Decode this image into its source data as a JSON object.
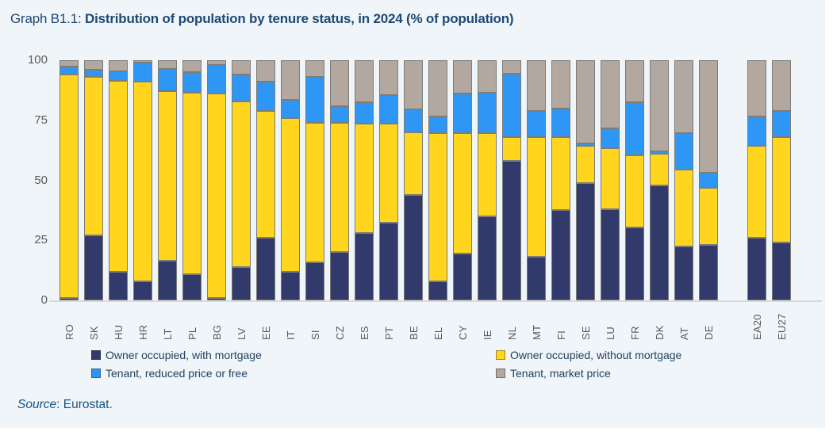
{
  "title": {
    "prefix": "Graph B1.1: ",
    "main": "Distribution of population by tenure status, in 2024 (% of population)"
  },
  "source": {
    "label": "Source",
    "rest": ": Eurostat."
  },
  "colors": {
    "panel_background": "#f0f5fa",
    "title_text": "#1d4a73",
    "axis_text": "#595959",
    "baseline": "#d9d9d9",
    "owner_with_mortgage": "#32396b",
    "owner_without_mortgage": "#ffd51d",
    "tenant_reduced": "#2e97f5",
    "tenant_market": "#b3a8a0"
  },
  "legend": {
    "items": [
      {
        "label": "Owner occupied, with mortgage",
        "color": "#32396b"
      },
      {
        "label": "Owner occupied, without mortgage",
        "color": "#ffd51d"
      },
      {
        "label": "Tenant, reduced price or free",
        "color": "#2e97f5"
      },
      {
        "label": "Tenant, market price",
        "color": "#b3a8a0"
      }
    ]
  },
  "chart_data": {
    "type": "bar",
    "stacked": true,
    "title": "Distribution of population by tenure status, in 2024 (% of population)",
    "xlabel": "",
    "ylabel": "",
    "ylim": [
      0,
      100
    ],
    "yticks": [
      0,
      25,
      50,
      75,
      100
    ],
    "grid": false,
    "legend_position": "bottom",
    "gap_before": "EA20",
    "categories": [
      "RO",
      "SK",
      "HU",
      "HR",
      "LT",
      "PL",
      "BG",
      "LV",
      "EE",
      "IT",
      "SI",
      "CZ",
      "ES",
      "PT",
      "BE",
      "EL",
      "CY",
      "IE",
      "NL",
      "MT",
      "FI",
      "SE",
      "LU",
      "FR",
      "DK",
      "AT",
      "DE",
      "EA20",
      "EU27"
    ],
    "series": [
      {
        "name": "Owner occupied, with mortgage",
        "color": "#32396b",
        "values": [
          1,
          27,
          12,
          8,
          16.5,
          11,
          1,
          14,
          26,
          12,
          16,
          20,
          28,
          32.5,
          44,
          8,
          19.5,
          35,
          58,
          18,
          37.5,
          49,
          38,
          30.5,
          48,
          22.5,
          23,
          26,
          24
        ]
      },
      {
        "name": "Owner occupied, without mortgage",
        "color": "#ffd51d",
        "values": [
          93,
          66,
          79.5,
          83,
          70.5,
          75.5,
          85,
          69,
          53,
          64,
          58,
          54,
          45.5,
          41,
          26,
          61.5,
          50,
          34.5,
          10,
          50,
          30.5,
          15.5,
          25.5,
          30,
          13,
          32,
          24,
          38.5,
          44
        ]
      },
      {
        "name": "Tenant, reduced price or free",
        "color": "#2e97f5",
        "values": [
          3.5,
          3,
          4,
          8,
          9.5,
          8.5,
          12,
          11,
          12,
          7.5,
          19,
          7,
          9,
          12,
          9.5,
          7,
          16.5,
          17,
          26.5,
          11,
          12,
          1,
          8,
          22,
          1,
          15,
          6,
          12,
          11
        ]
      },
      {
        "name": "Tenant, market price",
        "color": "#b3a8a0",
        "values": [
          2.5,
          4,
          4.5,
          1,
          3.5,
          5,
          2,
          6,
          9,
          16.5,
          7,
          19,
          17.5,
          14.5,
          20.5,
          23.5,
          14,
          13.5,
          5.5,
          21,
          20,
          34.5,
          28.5,
          17.5,
          38,
          30.5,
          47,
          23.5,
          21
        ]
      }
    ]
  }
}
